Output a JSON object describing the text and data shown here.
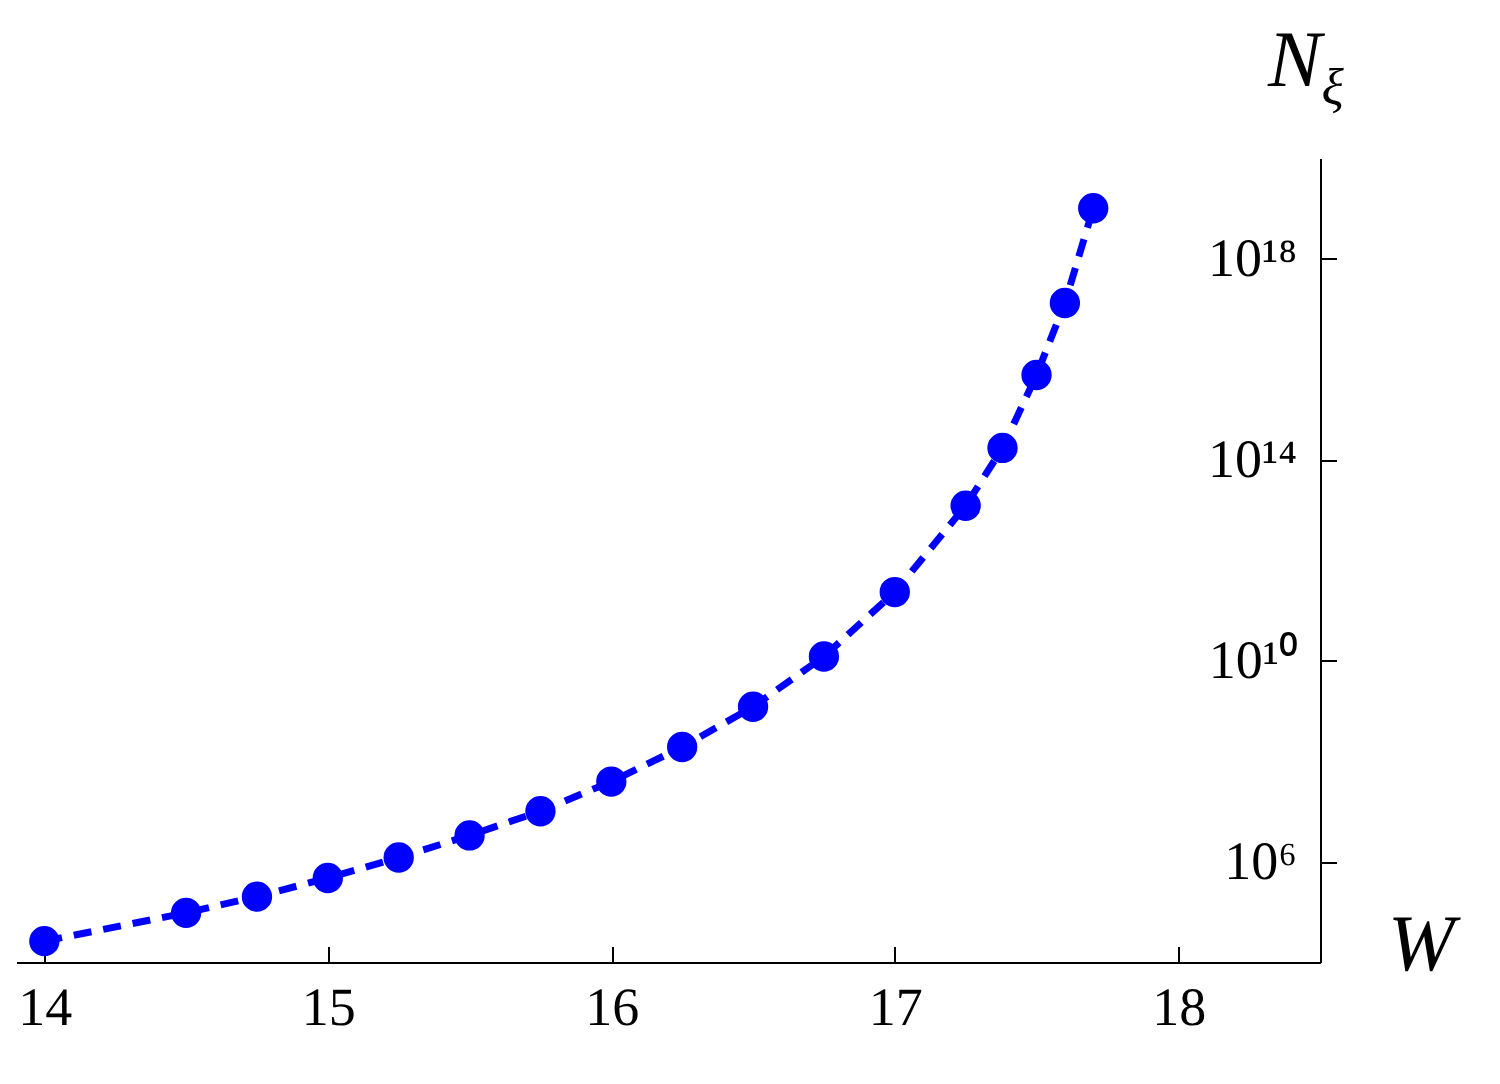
{
  "chart_data": {
    "type": "line",
    "xlabel": "W",
    "ylabel": "N$_{ξ}$",
    "log": "y",
    "marker": "circle",
    "line_style": "dashed",
    "grid": false,
    "xlim": [
      13.9,
      18.5
    ],
    "xticks": [
      14,
      15,
      16,
      17,
      18
    ],
    "ylim": [
      10000.0,
      1e+20
    ],
    "yticks": [
      {
        "value": 1000000.0,
        "label": "10⁶"
      },
      {
        "value": 10000000000.0,
        "label": "10¹⁰"
      },
      {
        "value": 100000000000000.0,
        "label": "10¹⁴"
      },
      {
        "value": 1e+18,
        "label": "10¹⁸"
      }
    ],
    "series": [
      {
        "color": "#0000ff",
        "x": [
          14,
          14.5,
          14.75,
          15,
          15.25,
          15.5,
          15.75,
          16,
          16.25,
          16.5,
          16.75,
          17,
          17.25,
          17.38,
          17.5,
          17.6,
          17.7
        ],
        "values": [
          26000.0,
          95000.0,
          200000.0,
          470000.0,
          1200000.0,
          3300000.0,
          10000000.0,
          39000000.0,
          190000000.0,
          1200000000.0,
          12000000000.0,
          230000000000.0,
          12000000000000.0,
          170000000000000.0,
          4800000000000000.0,
          1.3e+17,
          1e+19
        ]
      }
    ]
  }
}
